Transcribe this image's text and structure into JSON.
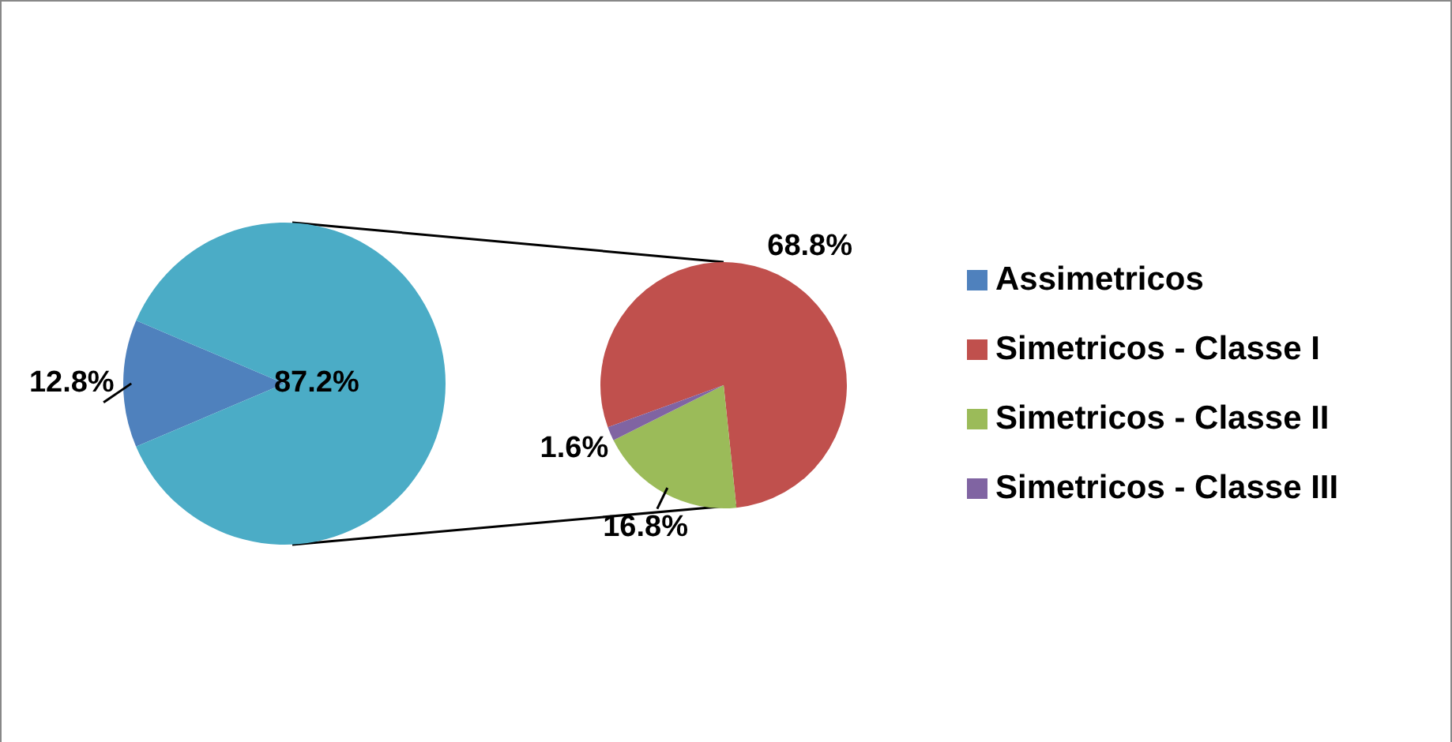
{
  "chart_data": [
    {
      "type": "pie",
      "categories": [
        "Assimetricos",
        null
      ],
      "values": [
        12.8,
        87.2
      ],
      "colors": [
        "#4f81bd",
        "#4bacc6"
      ],
      "value_labels": [
        "12.8%",
        "87.2%"
      ],
      "legend": "right"
    },
    {
      "type": "pie",
      "categories": [
        "Simetricos - Classe I",
        "Simetricos - Classe II",
        "Simetricos - Classe III"
      ],
      "values": [
        68.8,
        16.8,
        1.6
      ],
      "colors": [
        "#c0504d",
        "#9bbb59",
        "#8064a2"
      ],
      "value_labels": [
        "68.8%",
        "16.8%",
        "1.6%"
      ],
      "legend": "right"
    }
  ]
}
